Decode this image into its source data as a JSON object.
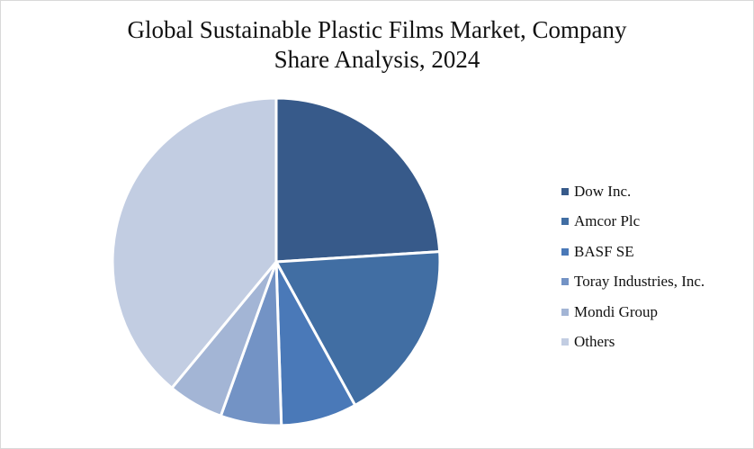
{
  "chart_data": {
    "type": "pie",
    "title": "Global Sustainable Plastic Films Market, Company Share Analysis, 2024",
    "title_lines": [
      "Global Sustainable Plastic Films Market, Company",
      "Share Analysis, 2024"
    ],
    "start_angle_deg": 0,
    "direction": "clockwise",
    "legend_position": "right",
    "slices": [
      {
        "label": "Dow Inc.",
        "value": 24.0,
        "color": "#375a8a"
      },
      {
        "label": "Amcor Plc",
        "value": 18.0,
        "color": "#416ea3"
      },
      {
        "label": "BASF SE",
        "value": 7.5,
        "color": "#4a79b8"
      },
      {
        "label": "Toray Industries, Inc.",
        "value": 6.0,
        "color": "#7393c5"
      },
      {
        "label": "Mondi Group",
        "value": 5.5,
        "color": "#a3b5d5"
      },
      {
        "label": "Others",
        "value": 39.0,
        "color": "#c2cde2"
      }
    ]
  }
}
